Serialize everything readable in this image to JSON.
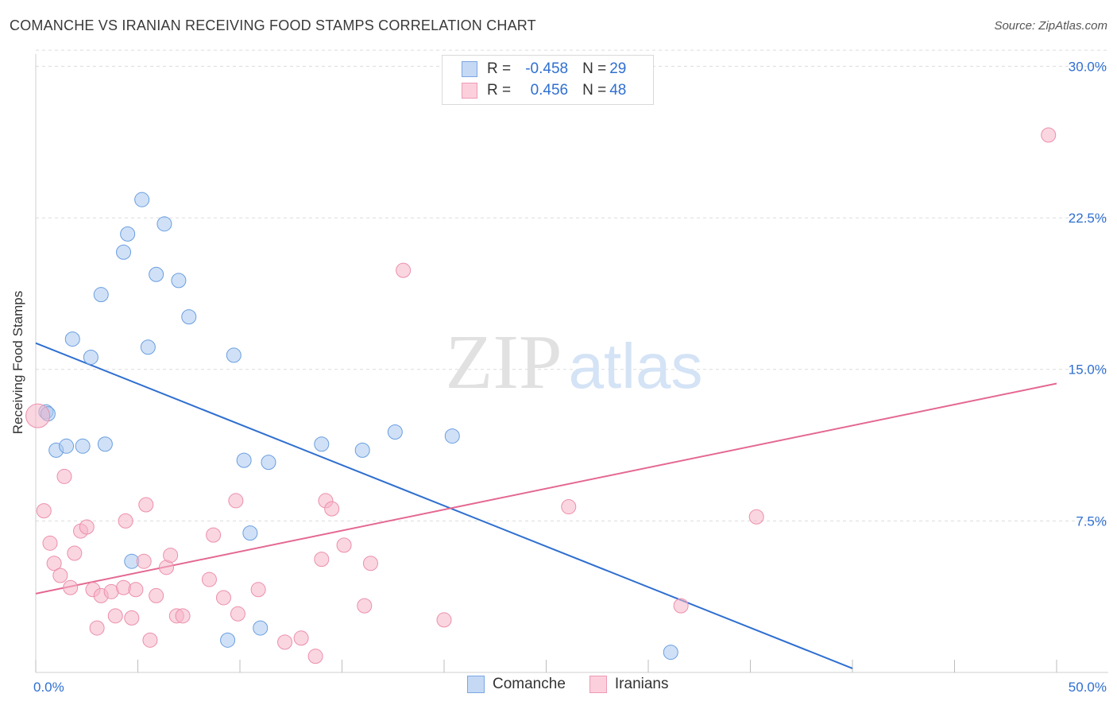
{
  "header": {
    "title": "COMANCHE VS IRANIAN RECEIVING FOOD STAMPS CORRELATION CHART",
    "source": "Source: ZipAtlas.com"
  },
  "watermark": {
    "zip": "ZIP",
    "atlas": "atlas"
  },
  "legend": {
    "rows": [
      {
        "r_label": "R = ",
        "r_value": "-0.458",
        "n_label": "N = ",
        "n_value": "29",
        "color": "#aac8f0"
      },
      {
        "r_label": "R = ",
        "r_value": "0.456",
        "n_label": "N = ",
        "n_value": "48",
        "color": "#f5b5c8"
      }
    ]
  },
  "bottom_legend": {
    "comanche": "Comanche",
    "iranians": "Iranians"
  },
  "chart_data": {
    "type": "scatter",
    "title": "COMANCHE VS IRANIAN RECEIVING FOOD STAMPS CORRELATION CHART",
    "xlabel": "",
    "ylabel": "Receiving Food Stamps",
    "xlim": [
      0,
      50
    ],
    "ylim": [
      0,
      31
    ],
    "x_tick_labels": [
      "0.0%",
      "50.0%"
    ],
    "y_tick_labels": [
      "7.5%",
      "15.0%",
      "22.5%",
      "30.0%"
    ],
    "y_tick_values": [
      7.5,
      15.0,
      22.5,
      30.0
    ],
    "grid": true,
    "series": [
      {
        "name": "Comanche",
        "color": "#aac8f0",
        "stroke": "#6a9ee0",
        "line_color": "#2f6fd0",
        "trend": [
          [
            0,
            16.3
          ],
          [
            40,
            0.2
          ]
        ],
        "points": [
          [
            0.5,
            12.9
          ],
          [
            0.6,
            12.8
          ],
          [
            1.0,
            11.0
          ],
          [
            1.5,
            11.2
          ],
          [
            1.8,
            16.5
          ],
          [
            2.3,
            11.2
          ],
          [
            2.7,
            15.6
          ],
          [
            3.2,
            18.7
          ],
          [
            3.4,
            11.3
          ],
          [
            4.3,
            20.8
          ],
          [
            4.5,
            21.7
          ],
          [
            4.7,
            5.5
          ],
          [
            5.2,
            23.4
          ],
          [
            5.5,
            16.1
          ],
          [
            5.9,
            19.7
          ],
          [
            6.3,
            22.2
          ],
          [
            7.0,
            19.4
          ],
          [
            7.5,
            17.6
          ],
          [
            9.4,
            1.6
          ],
          [
            9.7,
            15.7
          ],
          [
            10.2,
            10.5
          ],
          [
            10.5,
            6.9
          ],
          [
            11.0,
            2.2
          ],
          [
            11.4,
            10.4
          ],
          [
            14.0,
            11.3
          ],
          [
            16.0,
            11.0
          ],
          [
            17.6,
            11.9
          ],
          [
            20.4,
            11.7
          ],
          [
            31.1,
            1.0
          ]
        ]
      },
      {
        "name": "Iranians",
        "color": "#f5b5c8",
        "stroke": "#ec8fab",
        "line_color": "#e46891",
        "trend": [
          [
            0,
            3.9
          ],
          [
            50,
            14.3
          ]
        ],
        "points": [
          [
            0.1,
            12.7
          ],
          [
            0.4,
            8.0
          ],
          [
            0.7,
            6.4
          ],
          [
            0.9,
            5.4
          ],
          [
            1.2,
            4.8
          ],
          [
            1.4,
            9.7
          ],
          [
            1.7,
            4.2
          ],
          [
            1.9,
            5.9
          ],
          [
            2.2,
            7.0
          ],
          [
            2.5,
            7.2
          ],
          [
            2.8,
            4.1
          ],
          [
            3.0,
            2.2
          ],
          [
            3.2,
            3.8
          ],
          [
            3.7,
            4.0
          ],
          [
            3.9,
            2.8
          ],
          [
            4.3,
            4.2
          ],
          [
            4.4,
            7.5
          ],
          [
            4.7,
            2.7
          ],
          [
            4.9,
            4.1
          ],
          [
            5.3,
            5.5
          ],
          [
            5.4,
            8.3
          ],
          [
            5.6,
            1.6
          ],
          [
            5.9,
            3.8
          ],
          [
            6.4,
            5.2
          ],
          [
            6.6,
            5.8
          ],
          [
            6.9,
            2.8
          ],
          [
            7.2,
            2.8
          ],
          [
            8.5,
            4.6
          ],
          [
            8.7,
            6.8
          ],
          [
            9.2,
            3.7
          ],
          [
            9.8,
            8.5
          ],
          [
            9.9,
            2.9
          ],
          [
            10.9,
            4.1
          ],
          [
            12.2,
            1.5
          ],
          [
            13.0,
            1.7
          ],
          [
            13.7,
            0.8
          ],
          [
            14.0,
            5.6
          ],
          [
            14.2,
            8.5
          ],
          [
            14.5,
            8.1
          ],
          [
            15.1,
            6.3
          ],
          [
            16.1,
            3.3
          ],
          [
            16.4,
            5.4
          ],
          [
            18.0,
            19.9
          ],
          [
            20.0,
            2.6
          ],
          [
            26.1,
            8.2
          ],
          [
            35.3,
            7.7
          ],
          [
            31.6,
            3.3
          ],
          [
            49.6,
            26.6
          ]
        ]
      }
    ]
  }
}
